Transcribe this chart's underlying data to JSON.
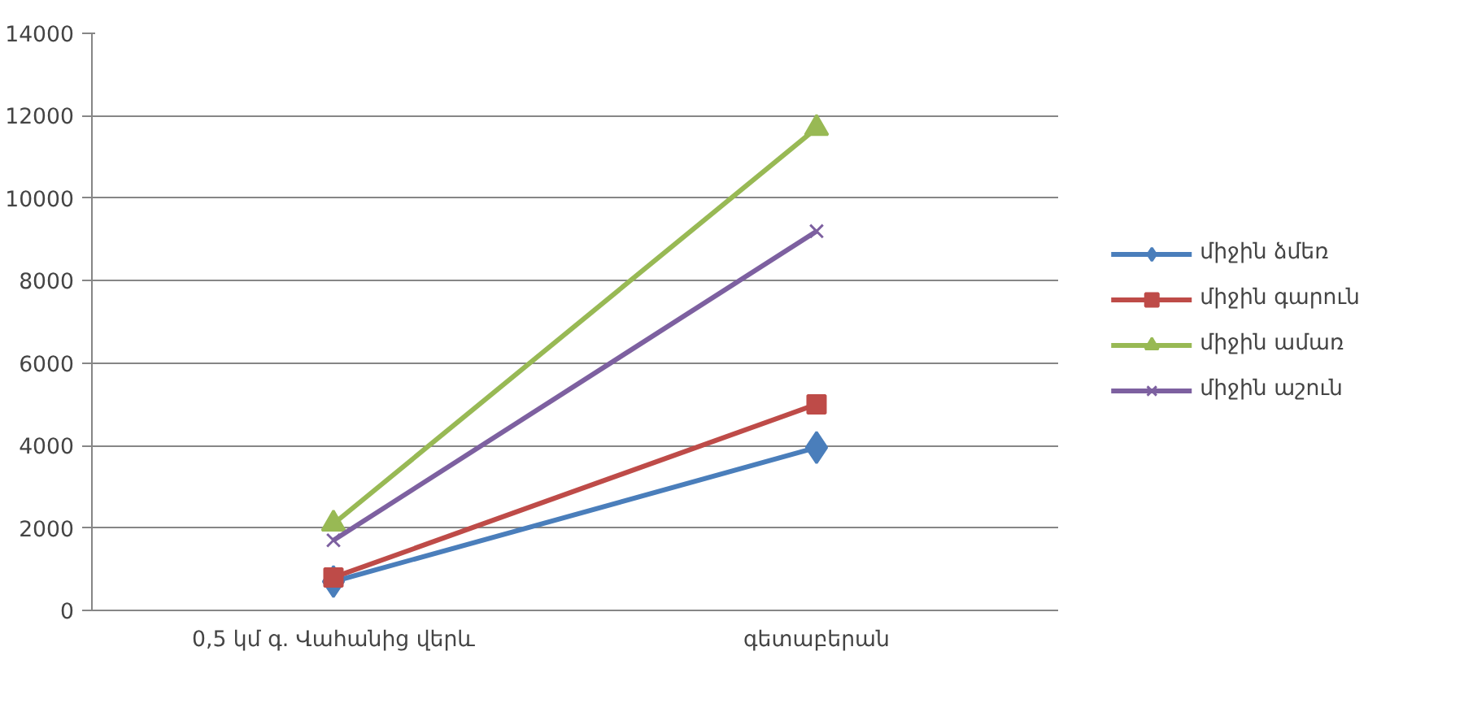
{
  "chart_data": {
    "type": "line",
    "categories": [
      "0,5 կմ գ. Վահանից վերև",
      "գետաբերան"
    ],
    "series": [
      {
        "name": "միջին ձմեռ",
        "color": "#4a7ebb",
        "marker": "diamond",
        "values": [
          700,
          3950
        ]
      },
      {
        "name": "միջին գարուն",
        "color": "#be4b48",
        "marker": "square",
        "values": [
          800,
          5000
        ]
      },
      {
        "name": "միջին ամառ",
        "color": "#98b954",
        "marker": "triangle",
        "values": [
          2100,
          11700
        ]
      },
      {
        "name": "միջին աշուն",
        "color": "#7d60a0",
        "marker": "cross",
        "values": [
          1700,
          9200
        ]
      }
    ],
    "ylim": [
      0,
      14000
    ],
    "yticks": [
      0,
      2000,
      4000,
      6000,
      8000,
      10000,
      12000,
      14000
    ],
    "grid": "y",
    "legend": "right",
    "line_style": "solid"
  }
}
